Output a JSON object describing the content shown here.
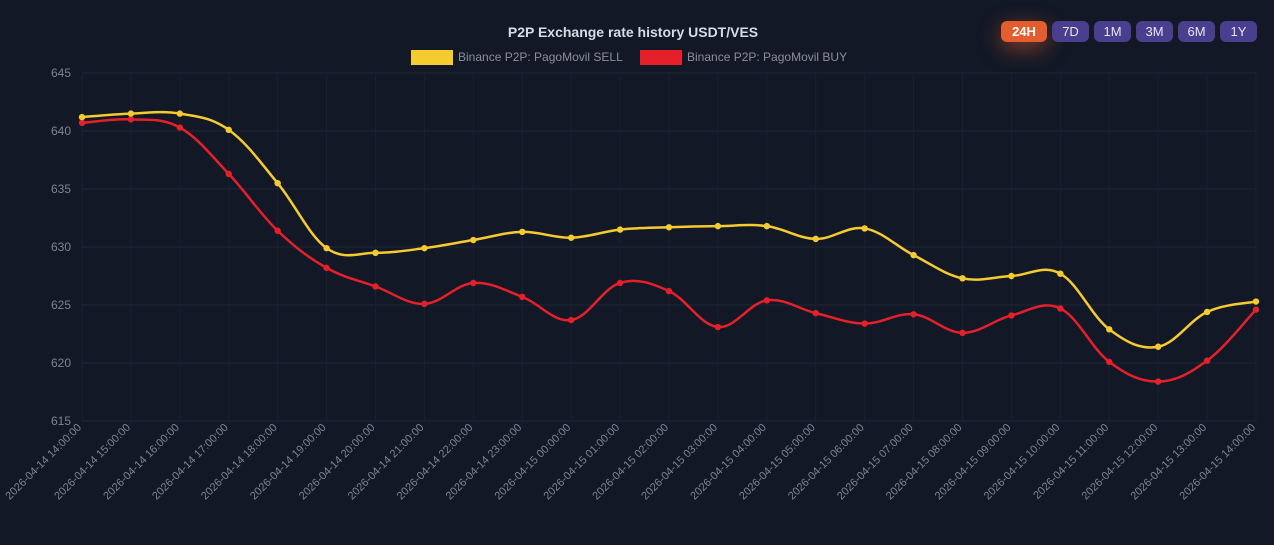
{
  "range_buttons": [
    {
      "label": "24H",
      "active": true
    },
    {
      "label": "7D",
      "active": false
    },
    {
      "label": "1M",
      "active": false
    },
    {
      "label": "3M",
      "active": false
    },
    {
      "label": "6M",
      "active": false
    },
    {
      "label": "1Y",
      "active": false
    }
  ],
  "chart_data": {
    "type": "line",
    "title": "P2P Exchange rate history USDT/VES",
    "legend_position": "top-center",
    "grid": true,
    "ylim": [
      615,
      645
    ],
    "yticks": [
      615,
      620,
      625,
      630,
      635,
      640,
      645
    ],
    "x": [
      "2026-04-14 14:00:00",
      "2026-04-14 15:00:00",
      "2026-04-14 16:00:00",
      "2026-04-14 17:00:00",
      "2026-04-14 18:00:00",
      "2026-04-14 19:00:00",
      "2026-04-14 20:00:00",
      "2026-04-14 21:00:00",
      "2026-04-14 22:00:00",
      "2026-04-14 23:00:00",
      "2026-04-15 00:00:00",
      "2026-04-15 01:00:00",
      "2026-04-15 02:00:00",
      "2026-04-15 03:00:00",
      "2026-04-15 04:00:00",
      "2026-04-15 05:00:00",
      "2026-04-15 06:00:00",
      "2026-04-15 07:00:00",
      "2026-04-15 08:00:00",
      "2026-04-15 09:00:00",
      "2026-04-15 10:00:00",
      "2026-04-15 11:00:00",
      "2026-04-15 12:00:00",
      "2026-04-15 13:00:00",
      "2026-04-15 14:00:00"
    ],
    "series": [
      {
        "name": "Binance P2P: PagoMovil SELL",
        "color": "#f5cb2f",
        "values": [
          641.2,
          641.5,
          641.5,
          640.1,
          635.5,
          629.9,
          629.5,
          629.9,
          630.6,
          631.3,
          630.8,
          631.5,
          631.7,
          631.8,
          631.8,
          630.7,
          631.6,
          629.3,
          627.3,
          627.5,
          627.7,
          622.9,
          621.4,
          624.4,
          625.3
        ]
      },
      {
        "name": "Binance P2P: PagoMovil BUY",
        "color": "#e5202a",
        "values": [
          640.7,
          641.0,
          640.3,
          636.3,
          631.4,
          628.2,
          626.6,
          625.1,
          626.9,
          625.7,
          623.7,
          626.9,
          626.2,
          623.1,
          625.4,
          624.3,
          623.4,
          624.2,
          622.6,
          624.1,
          624.7,
          620.1,
          618.4,
          620.2,
          624.6
        ]
      }
    ]
  }
}
